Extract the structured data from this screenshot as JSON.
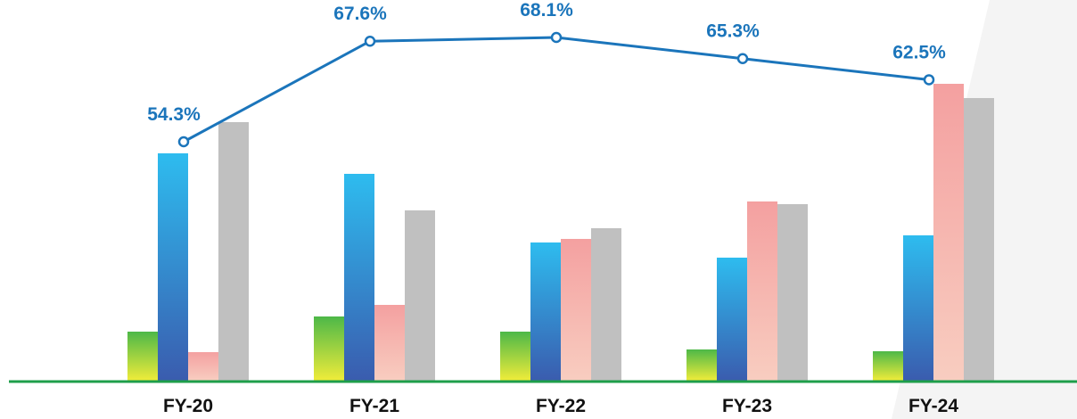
{
  "chart_data": {
    "type": "bar",
    "categories": [
      "FY-20",
      "FY-21",
      "FY-22",
      "FY-23",
      "FY-24"
    ],
    "series": [
      {
        "values": [
          55,
          72,
          55,
          35,
          33
        ],
        "color": "#5cb85c"
      },
      {
        "values": [
          255,
          232,
          155,
          138,
          163
        ],
        "color": "#29b6f6"
      },
      {
        "values": [
          32,
          85,
          159,
          201,
          333
        ],
        "color": "#f4a0a0"
      },
      {
        "values": [
          290,
          191,
          171,
          198,
          317
        ],
        "color": "#c0c0c0"
      }
    ],
    "line_series": {
      "values": [
        54.3,
        67.6,
        68.1,
        65.3,
        62.5
      ],
      "labels": [
        "54.3%",
        "67.6%",
        "68.1%",
        "65.3%",
        "62.5%"
      ],
      "color": "#1b75bb"
    },
    "ylim": [
      0,
      340
    ],
    "baseline_color": "#1e9e4a",
    "grid": false,
    "legend": "none"
  }
}
